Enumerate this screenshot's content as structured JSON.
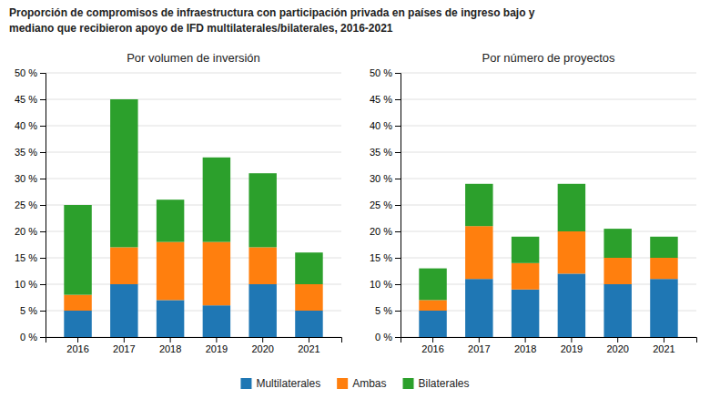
{
  "chart_data": [
    {
      "type": "bar",
      "title": "Proporción de compromisos de infraestructura con participación privada en países de ingreso bajo y\nmediano que recibieron apoyo de IFD multilaterales/bilaterales, 2016-2021",
      "subtitle": "Por volumen de inversión",
      "categories": [
        "2016",
        "2017",
        "2018",
        "2019",
        "2020",
        "2021"
      ],
      "series": [
        {
          "name": "Multilaterales",
          "values": [
            5,
            10,
            7,
            6,
            10,
            5
          ]
        },
        {
          "name": "Ambas",
          "values": [
            3,
            7,
            11,
            12,
            7,
            5
          ]
        },
        {
          "name": "Bilaterales",
          "values": [
            17,
            28,
            8,
            16,
            14,
            6
          ]
        }
      ],
      "stacked": true,
      "ylim": [
        0,
        50
      ],
      "yticks": [
        {
          "value": 0,
          "label": "0 %"
        },
        {
          "value": 5,
          "label": "5 %"
        },
        {
          "value": 10,
          "label": "10 %"
        },
        {
          "value": 15,
          "label": "15 %"
        },
        {
          "value": 20,
          "label": "20 %"
        },
        {
          "value": 25,
          "label": "25 %"
        },
        {
          "value": 30,
          "label": "30 %"
        },
        {
          "value": 35,
          "label": "35 %"
        },
        {
          "value": 40,
          "label": "40 %"
        },
        {
          "value": 45,
          "label": "45 %"
        },
        {
          "value": 50,
          "label": "50 %"
        }
      ],
      "grid": true,
      "legend": "bottom"
    },
    {
      "type": "bar",
      "subtitle": "Por número de proyectos",
      "categories": [
        "2016",
        "2017",
        "2018",
        "2019",
        "2020",
        "2021"
      ],
      "series": [
        {
          "values": [
            5,
            11,
            9,
            12,
            10,
            11
          ]
        },
        {
          "values": [
            2,
            10,
            5,
            8,
            5,
            4
          ]
        },
        {
          "values": [
            6,
            8,
            5,
            9,
            5.5,
            4
          ]
        }
      ],
      "stacked": true,
      "ylim": [
        0,
        50
      ],
      "yticks": [
        {
          "value": 0,
          "label": "0 %"
        },
        {
          "value": 5,
          "label": "5 %"
        },
        {
          "value": 10,
          "label": "10 %"
        },
        {
          "value": 15,
          "label": "15 %"
        },
        {
          "value": 20,
          "label": "20 %"
        },
        {
          "value": 25,
          "label": "25 %"
        },
        {
          "value": 30,
          "label": "30 %"
        },
        {
          "value": 35,
          "label": "35 %"
        },
        {
          "value": 40,
          "label": "40 %"
        },
        {
          "value": 45,
          "label": "45 %"
        },
        {
          "value": 50,
          "label": "50 %"
        }
      ],
      "grid": true
    }
  ]
}
